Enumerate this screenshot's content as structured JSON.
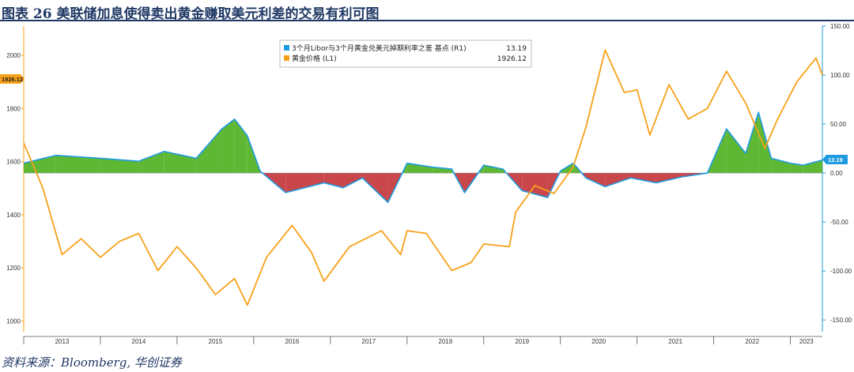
{
  "figure": {
    "title": "图表 26  美联储加息使得卖出黄金赚取美元利差的交易有利可图",
    "source": "资料来源：Bloomberg, 华创证券"
  },
  "legend": [
    {
      "label": "3个月Libor与3个月黄金兑美元掉期利率之差 基点 (R1)",
      "value": "13.19",
      "color": "#1e9be0"
    },
    {
      "label": "黄金价格   (L1)",
      "value": "1926.12",
      "color": "#f7a11a"
    }
  ],
  "tags": {
    "left": "1926.12",
    "right": "13.19"
  },
  "colors": {
    "gold": "#f7a11a",
    "spread": "#1e9be0",
    "pos_fill": "#5eb834",
    "neg_fill": "#c9464b",
    "tag_left": "#f7a11a",
    "tag_right": "#1e9be0"
  },
  "chart_data": {
    "type": "line",
    "x_axis": {
      "ticks": [
        "2013",
        "2014",
        "2015",
        "2016",
        "2017",
        "2018",
        "2019",
        "2020",
        "2021",
        "2022",
        "2023"
      ],
      "range": [
        "2013-01",
        "2023-06"
      ]
    },
    "y_left": {
      "label": "L1",
      "ticks": [
        1000,
        1200,
        1400,
        1600,
        1800,
        2000
      ],
      "range": [
        960,
        2110
      ]
    },
    "y_right": {
      "label": "R1",
      "ticks": [
        "-150.00",
        "-100.00",
        "-50.00",
        "0.00",
        "50.00",
        "100.00",
        "150.00"
      ],
      "range": [
        -162,
        150
      ]
    },
    "series": [
      {
        "name": "黄金价格 (L1)",
        "axis": "left",
        "x": [
          "2013-01",
          "2013-04",
          "2013-07",
          "2013-10",
          "2014-01",
          "2014-04",
          "2014-07",
          "2014-10",
          "2015-01",
          "2015-04",
          "2015-07",
          "2015-10",
          "2015-12",
          "2016-03",
          "2016-07",
          "2016-10",
          "2016-12",
          "2017-04",
          "2017-09",
          "2017-12",
          "2018-01",
          "2018-04",
          "2018-08",
          "2018-11",
          "2019-01",
          "2019-05",
          "2019-06",
          "2019-09",
          "2019-12",
          "2020-03",
          "2020-05",
          "2020-08",
          "2020-11",
          "2021-01",
          "2021-03",
          "2021-06",
          "2021-09",
          "2021-12",
          "2022-03",
          "2022-06",
          "2022-09",
          "2022-11",
          "2023-02",
          "2023-05",
          "2023-06"
        ],
        "values": [
          1670,
          1500,
          1250,
          1310,
          1240,
          1300,
          1330,
          1190,
          1280,
          1200,
          1100,
          1160,
          1060,
          1240,
          1360,
          1260,
          1150,
          1280,
          1340,
          1250,
          1340,
          1330,
          1190,
          1220,
          1290,
          1280,
          1410,
          1510,
          1480,
          1580,
          1730,
          2020,
          1860,
          1870,
          1700,
          1890,
          1760,
          1800,
          1940,
          1820,
          1650,
          1760,
          1900,
          1990,
          1926
        ]
      },
      {
        "name": "3个月Libor与3个月黄金兑美元掉期利率之差 基点 (R1)",
        "axis": "right",
        "x": [
          "2013-01",
          "2013-06",
          "2014-01",
          "2014-07",
          "2014-11",
          "2015-04",
          "2015-08",
          "2015-10",
          "2015-12",
          "2016-02",
          "2016-06",
          "2016-12",
          "2017-03",
          "2017-06",
          "2017-10",
          "2018-01",
          "2018-05",
          "2018-08",
          "2018-10",
          "2019-01",
          "2019-04",
          "2019-07",
          "2019-11",
          "2020-01",
          "2020-03",
          "2020-05",
          "2020-08",
          "2020-12",
          "2021-04",
          "2021-08",
          "2021-12",
          "2022-03",
          "2022-06",
          "2022-08",
          "2022-10",
          "2023-01",
          "2023-03",
          "2023-06"
        ],
        "values": [
          10,
          18,
          15,
          12,
          22,
          15,
          45,
          55,
          38,
          2,
          -20,
          -10,
          -15,
          -5,
          -30,
          10,
          6,
          4,
          -20,
          8,
          4,
          -18,
          -25,
          2,
          10,
          -5,
          -14,
          -5,
          -10,
          -4,
          0,
          45,
          20,
          62,
          15,
          10,
          8,
          13.19
        ]
      }
    ],
    "grid": false,
    "legend_position": "top-center"
  }
}
